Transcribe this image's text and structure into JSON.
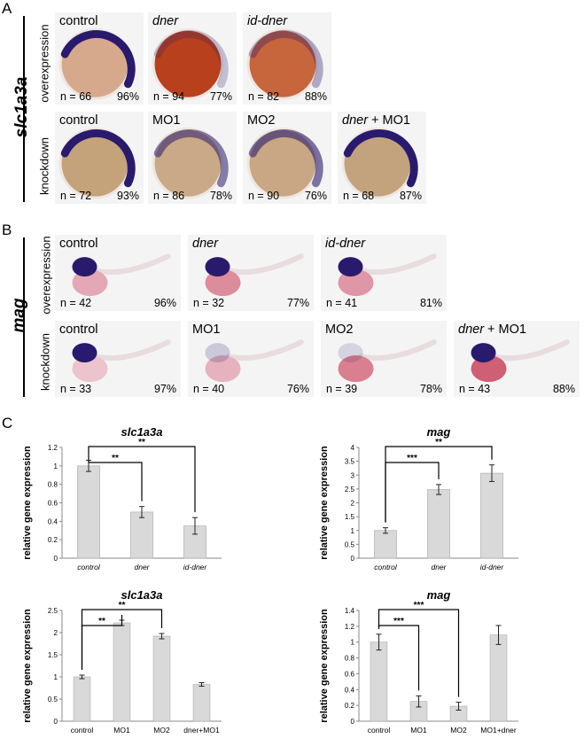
{
  "panels": {
    "A": {
      "letter": "A",
      "gene": "slc1a3a",
      "rows": [
        {
          "label": "overexpression",
          "tiles": [
            {
              "name": "control",
              "label_parts": [
                {
                  "text": "control",
                  "italic": false
                }
              ],
              "n": "n = 66",
              "pct": "96%",
              "yolk": "#d7a98c",
              "stain": 1.0
            },
            {
              "name": "dner",
              "label_parts": [
                {
                  "text": "dner",
                  "italic": true
                }
              ],
              "n": "n = 94",
              "pct": "77%",
              "yolk": "#b8401c",
              "stain": 0.25
            },
            {
              "name": "id-dner",
              "label_parts": [
                {
                  "text": "id-dner",
                  "italic": true
                }
              ],
              "n": "n = 82",
              "pct": "88%",
              "yolk": "#c7653d",
              "stain": 0.35
            }
          ]
        },
        {
          "label": "knockdown",
          "tiles": [
            {
              "name": "control",
              "label_parts": [
                {
                  "text": "control",
                  "italic": false
                }
              ],
              "n": "n = 72",
              "pct": "93%",
              "yolk": "#c4a27a",
              "stain": 1.0
            },
            {
              "name": "mo1",
              "label_parts": [
                {
                  "text": "MO1",
                  "italic": false
                }
              ],
              "n": "n = 86",
              "pct": "78%",
              "yolk": "#c9a987",
              "stain": 0.55
            },
            {
              "name": "mo2",
              "label_parts": [
                {
                  "text": "MO2",
                  "italic": false
                }
              ],
              "n": "n = 90",
              "pct": "76%",
              "yolk": "#c9a784",
              "stain": 0.6
            },
            {
              "name": "dner-mo1",
              "label_parts": [
                {
                  "text": "dner",
                  "italic": true
                },
                {
                  "text": " + MO1",
                  "italic": false
                }
              ],
              "n": "n = 68",
              "pct": "87%",
              "yolk": "#c3a37d",
              "stain": 1.0
            }
          ]
        }
      ]
    },
    "B": {
      "letter": "B",
      "gene": "mag",
      "rows": [
        {
          "label": "overexpression",
          "tiles": [
            {
              "name": "control",
              "label_parts": [
                {
                  "text": "control",
                  "italic": false
                }
              ],
              "n": "n = 42",
              "pct": "96%",
              "yolk": "#e3a7b6",
              "stain": 1.0
            },
            {
              "name": "dner",
              "label_parts": [
                {
                  "text": "dner",
                  "italic": true
                }
              ],
              "n": "n = 32",
              "pct": "77%",
              "yolk": "#dd8c9c",
              "stain": 1.0
            },
            {
              "name": "id-dner",
              "label_parts": [
                {
                  "text": "id-dner",
                  "italic": true
                }
              ],
              "n": "n = 41",
              "pct": "81%",
              "yolk": "#df96a6",
              "stain": 1.0
            }
          ]
        },
        {
          "label": "knockdown",
          "tiles": [
            {
              "name": "control",
              "label_parts": [
                {
                  "text": "control",
                  "italic": false
                }
              ],
              "n": "n = 33",
              "pct": "97%",
              "yolk": "#edc3cd",
              "stain": 1.0
            },
            {
              "name": "mo1",
              "label_parts": [
                {
                  "text": "MO1",
                  "italic": false
                }
              ],
              "n": "n = 40",
              "pct": "76%",
              "yolk": "#e7b2bf",
              "stain": 0.2
            },
            {
              "name": "mo2",
              "label_parts": [
                {
                  "text": "MO2",
                  "italic": false
                }
              ],
              "n": "n = 39",
              "pct": "78%",
              "yolk": "#d97f8f",
              "stain": 0.15
            },
            {
              "name": "dner-mo1",
              "label_parts": [
                {
                  "text": "dner",
                  "italic": true
                },
                {
                  "text": " + MO1",
                  "italic": false
                }
              ],
              "n": "n = 43",
              "pct": "88%",
              "yolk": "#cf5f74",
              "stain": 1.0
            }
          ]
        }
      ]
    },
    "C": {
      "letter": "C"
    }
  },
  "chart_data": [
    {
      "type": "bar",
      "title": "slc1a3a",
      "ylabel": "relative gene expression",
      "categories": [
        "control",
        "dner",
        "id-dner"
      ],
      "italic_categories": true,
      "values": [
        1.0,
        0.5,
        0.35
      ],
      "errors": [
        0.06,
        0.06,
        0.09
      ],
      "ylim": [
        0,
        1.2
      ],
      "yticks": [
        "0",
        "0.2",
        "0.4",
        "0.6",
        "0.8",
        "1",
        "1.2"
      ],
      "significance": [
        {
          "from": 0,
          "to": 1,
          "label": "**"
        },
        {
          "from": 0,
          "to": 2,
          "label": "**"
        }
      ],
      "bar_color": "#d9d9d9"
    },
    {
      "type": "bar",
      "title": "mag",
      "ylabel": "relative gene expression",
      "categories": [
        "control",
        "dner",
        "id-dner"
      ],
      "italic_categories": true,
      "values": [
        1.0,
        2.48,
        3.07
      ],
      "errors": [
        0.1,
        0.18,
        0.3
      ],
      "ylim": [
        0,
        4
      ],
      "yticks": [
        "0",
        "0.5",
        "1",
        "1.5",
        "2",
        "2.5",
        "3",
        "3.5",
        "4"
      ],
      "significance": [
        {
          "from": 0,
          "to": 1,
          "label": "***"
        },
        {
          "from": 0,
          "to": 2,
          "label": "**"
        }
      ],
      "bar_color": "#d9d9d9"
    },
    {
      "type": "bar",
      "title": "slc1a3a",
      "ylabel": "relative gene expression",
      "categories": [
        "control",
        "MO1",
        "MO2",
        "dner+MO1"
      ],
      "italic_categories": false,
      "values": [
        1.0,
        2.22,
        1.92,
        0.83
      ],
      "errors": [
        0.04,
        0.06,
        0.06,
        0.04
      ],
      "ylim": [
        0,
        2.5
      ],
      "yticks": [
        "0",
        "0.5",
        "1",
        "1.5",
        "2",
        "2.5"
      ],
      "significance": [
        {
          "from": 0,
          "to": 1,
          "label": "**"
        },
        {
          "from": 0,
          "to": 2,
          "label": "**"
        }
      ],
      "bar_color": "#d9d9d9"
    },
    {
      "type": "bar",
      "title": "mag",
      "ylabel": "relative gene expression",
      "categories": [
        "control",
        "MO1",
        "MO2",
        "MO1+dner"
      ],
      "italic_categories": false,
      "values": [
        1.0,
        0.25,
        0.19,
        1.09
      ],
      "errors": [
        0.1,
        0.07,
        0.05,
        0.12
      ],
      "ylim": [
        0,
        1.4
      ],
      "yticks": [
        "0",
        "0.2",
        "0.4",
        "0.6",
        "0.8",
        "1",
        "1.2",
        "1.4"
      ],
      "significance": [
        {
          "from": 0,
          "to": 1,
          "label": "***"
        },
        {
          "from": 0,
          "to": 2,
          "label": "***"
        }
      ],
      "bar_color": "#d9d9d9"
    }
  ]
}
